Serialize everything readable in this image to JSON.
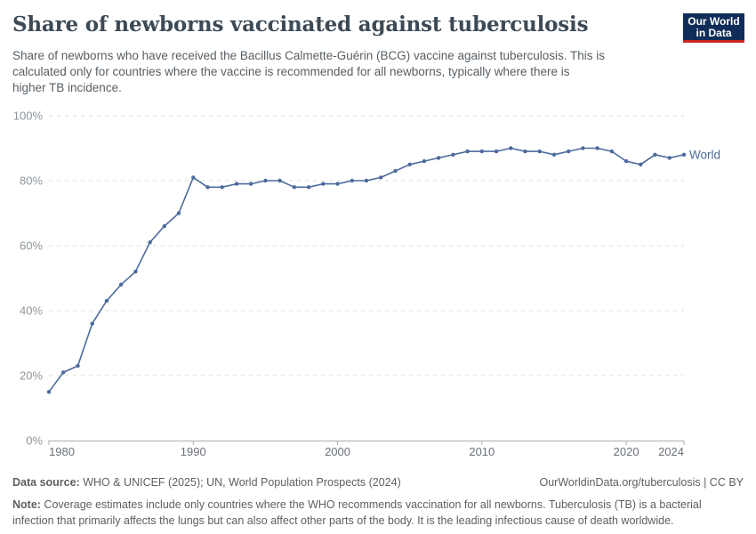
{
  "header": {
    "title": "Share of newborns vaccinated against tuberculosis",
    "subtitle_lines": [
      "Share of newborns who have received the Bacillus Calmette-Guérin (BCG) vaccine against tuberculosis. This is",
      "calculated only for countries where the vaccine is recommended for all newborns, typically where there is",
      "higher TB incidence."
    ],
    "logo": {
      "line1": "Our World",
      "line2": "in Data",
      "bg_color": "#102D59",
      "accent_color": "#CE261F"
    }
  },
  "chart_data": {
    "type": "line",
    "title": "Share of newborns vaccinated against tuberculosis",
    "xlabel": "",
    "ylabel": "",
    "ylim": [
      0,
      100
    ],
    "x_range": [
      1980,
      2024
    ],
    "grid": "horizontal-dashed",
    "legend_position": "end-of-line",
    "y_ticks": [
      {
        "value": 0,
        "label": "0%"
      },
      {
        "value": 20,
        "label": "20%"
      },
      {
        "value": 40,
        "label": "40%"
      },
      {
        "value": 60,
        "label": "60%"
      },
      {
        "value": 80,
        "label": "80%"
      },
      {
        "value": 100,
        "label": "100%"
      }
    ],
    "x_ticks": [
      {
        "value": 1980,
        "label": "1980"
      },
      {
        "value": 1990,
        "label": "1990"
      },
      {
        "value": 2000,
        "label": "2000"
      },
      {
        "value": 2010,
        "label": "2010"
      },
      {
        "value": 2020,
        "label": "2020"
      },
      {
        "value": 2024,
        "label": "2024"
      }
    ],
    "series": [
      {
        "name": "World",
        "color": "#4C6A9C",
        "years": [
          1980,
          1981,
          1982,
          1983,
          1984,
          1985,
          1986,
          1987,
          1988,
          1989,
          1990,
          1991,
          1992,
          1993,
          1994,
          1995,
          1996,
          1997,
          1998,
          1999,
          2000,
          2001,
          2002,
          2003,
          2004,
          2005,
          2006,
          2007,
          2008,
          2009,
          2010,
          2011,
          2012,
          2013,
          2014,
          2015,
          2016,
          2017,
          2018,
          2019,
          2020,
          2021,
          2022,
          2023,
          2024
        ],
        "values": [
          15,
          21,
          23,
          36,
          43,
          48,
          52,
          61,
          66,
          70,
          81,
          78,
          78,
          79,
          79,
          80,
          80,
          78,
          78,
          79,
          79,
          80,
          80,
          81,
          83,
          85,
          86,
          87,
          88,
          89,
          89,
          89,
          90,
          89,
          89,
          88,
          89,
          90,
          90,
          89,
          86,
          85,
          88,
          87,
          88
        ]
      }
    ]
  },
  "footer": {
    "datasource_label": "Data source:",
    "datasource_text": " WHO & UNICEF (2025); UN, World Population Prospects (2024)",
    "link_text": "OurWorldinData.org/tuberculosis | CC BY",
    "note_label": "Note:",
    "note_lines": [
      " Coverage estimates include only countries where the WHO recommends vaccination for all newborns. Tuberculosis (TB) is a bacterial",
      "infection that primarily affects the lungs but can also affect other parts of the body. It is the leading infectious cause of death worldwide."
    ]
  }
}
